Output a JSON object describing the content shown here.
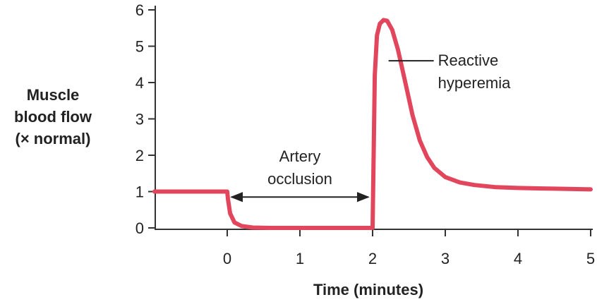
{
  "chart_data": {
    "type": "line",
    "title": "",
    "ylabel": [
      "Muscle",
      "blood flow",
      "(× normal)"
    ],
    "xlabel": "Time (minutes)",
    "xlim": [
      -1,
      5
    ],
    "ylim": [
      0,
      6
    ],
    "x_ticks": [
      0,
      1,
      2,
      3,
      4,
      5
    ],
    "y_ticks": [
      0,
      1,
      2,
      3,
      4,
      5,
      6
    ],
    "grid": false,
    "legend": "none",
    "series": [
      {
        "color": "#e2465c",
        "points": [
          [
            -1,
            1
          ],
          [
            0,
            1
          ],
          [
            0.01,
            0.8
          ],
          [
            0.04,
            0.4
          ],
          [
            0.1,
            0.15
          ],
          [
            0.2,
            0.05
          ],
          [
            0.35,
            0.01
          ],
          [
            0.6,
            0
          ],
          [
            2,
            0
          ],
          [
            2.03,
            4.2
          ],
          [
            2.06,
            5.3
          ],
          [
            2.1,
            5.62
          ],
          [
            2.15,
            5.72
          ],
          [
            2.2,
            5.7
          ],
          [
            2.27,
            5.45
          ],
          [
            2.35,
            4.9
          ],
          [
            2.45,
            4.0
          ],
          [
            2.55,
            3.1
          ],
          [
            2.65,
            2.4
          ],
          [
            2.75,
            1.95
          ],
          [
            2.85,
            1.65
          ],
          [
            3.0,
            1.4
          ],
          [
            3.2,
            1.25
          ],
          [
            3.4,
            1.18
          ],
          [
            3.7,
            1.12
          ],
          [
            4.0,
            1.1
          ],
          [
            4.5,
            1.08
          ],
          [
            5.0,
            1.06
          ]
        ]
      }
    ],
    "annotations": [
      {
        "lines": [
          "Artery",
          "occlusion"
        ],
        "x_start": 0,
        "x_end": 2,
        "y": 0.85
      },
      {
        "lines": [
          "Reactive",
          "hyperemia"
        ],
        "pointer_x": 2.22,
        "pointer_y": 4.6
      }
    ]
  }
}
